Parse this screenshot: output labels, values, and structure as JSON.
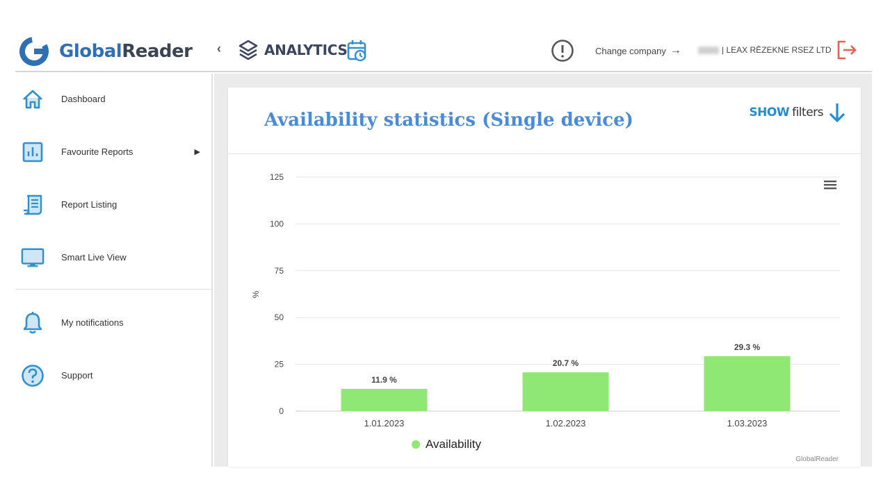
{
  "header": {
    "logo_prefix": "Global",
    "logo_suffix": "Reader",
    "module_label": "ANALYTICS",
    "change_company_label": "Change company",
    "user_company": "| LEAX RĒZEKNE RSEZ LTD",
    "brand_color": "#2f6fb5",
    "logout_color": "#e8614f",
    "icons": [
      "globalreader-logo-icon",
      "chevron-left-icon",
      "layers-icon",
      "calendar-clock-icon",
      "alert-circle-icon",
      "arrow-right-icon",
      "logout-icon"
    ]
  },
  "sidebar": {
    "items": [
      {
        "label": "Dashboard",
        "icon": "home-icon"
      },
      {
        "label": "Favourite Reports",
        "icon": "bar-chart-icon",
        "has_submenu": true
      },
      {
        "label": "Report Listing",
        "icon": "report-list-icon"
      },
      {
        "label": "Smart Live View",
        "icon": "monitor-icon"
      },
      {
        "label": "My notifications",
        "icon": "bell-icon"
      },
      {
        "label": "Support",
        "icon": "help-circle-icon"
      }
    ]
  },
  "main": {
    "title": "Availability statistics (Single device)",
    "filters_show": "SHOW",
    "filters_label": "filters",
    "credit": "GlobalReader"
  },
  "chart_data": {
    "type": "bar",
    "title": "",
    "xlabel": "",
    "ylabel": "%",
    "categories": [
      "1.01.2023",
      "1.02.2023",
      "1.03.2023"
    ],
    "series": [
      {
        "name": "Availability",
        "values": [
          11.9,
          20.7,
          29.3
        ],
        "labels": [
          "11.9 %",
          "20.7 %",
          "29.3 %"
        ],
        "color": "#90e874"
      }
    ],
    "ylim": [
      0,
      125
    ],
    "yticks": [
      "0",
      "25",
      "50",
      "75",
      "100",
      "125"
    ],
    "ytick_values": [
      0,
      25,
      50,
      75,
      100,
      125
    ],
    "grid": true,
    "legend_position": "bottom-left"
  }
}
